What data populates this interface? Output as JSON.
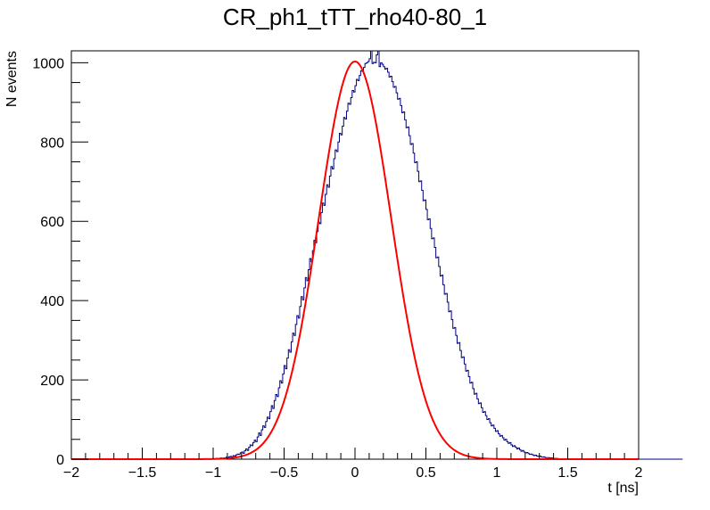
{
  "chart_data": {
    "type": "line",
    "title": "CR_ph1_tTT_rho40-80_1",
    "xlabel": "t [ns]",
    "ylabel": "N events",
    "xlim": [
      -2,
      2
    ],
    "ylim": [
      0,
      1030
    ],
    "x_ticks": [
      -2,
      -1.5,
      -1,
      -0.5,
      0,
      0.5,
      1,
      1.5,
      2
    ],
    "x_tick_labels": [
      "−2",
      "−1.5",
      "−1",
      "−0.5",
      "0",
      "0.5",
      "1",
      "1.5",
      "2"
    ],
    "y_ticks": [
      0,
      200,
      400,
      600,
      800,
      1000
    ],
    "y_tick_labels": [
      "0",
      "200",
      "400",
      "600",
      "800",
      "1000"
    ],
    "grid": false,
    "legend": "none",
    "series": [
      {
        "kind": "histogram",
        "color": "#000080",
        "bin_edges_range": [
          -2,
          2
        ],
        "bin_width": 0.01,
        "values": [
          0,
          0,
          0,
          0,
          0,
          0,
          0,
          0,
          0,
          0,
          0,
          0,
          0,
          0,
          0,
          0,
          0,
          0,
          0,
          0,
          0,
          0,
          0,
          0,
          0,
          0,
          0,
          0,
          0,
          0,
          0,
          0,
          0,
          0,
          0,
          0,
          0,
          0,
          0,
          0,
          0,
          0,
          0,
          0,
          0,
          0,
          0,
          0,
          0,
          0,
          0,
          0,
          0,
          0,
          0,
          0,
          0,
          0,
          0,
          0,
          0,
          0,
          0,
          0,
          0,
          0,
          0,
          0,
          0,
          0,
          0,
          0,
          0,
          0,
          0,
          0,
          0,
          0,
          0,
          0,
          0,
          0,
          0,
          0,
          0,
          0,
          0,
          0,
          0,
          0,
          0,
          0,
          0,
          0,
          0,
          0,
          0,
          0,
          0,
          0,
          1,
          1,
          2,
          2,
          1,
          3,
          2,
          3,
          3,
          5,
          4,
          6,
          7,
          6,
          9,
          8,
          11,
          13,
          12,
          16,
          18,
          15,
          21,
          26,
          22,
          30,
          36,
          34,
          42,
          48,
          44,
          56,
          66,
          60,
          74,
          84,
          80,
          95,
          106,
          102,
          120,
          135,
          128,
          148,
          163,
          158,
          180,
          198,
          192,
          215,
          236,
          228,
          255,
          276,
          270,
          296,
          318,
          312,
          340,
          362,
          356,
          385,
          410,
          402,
          432,
          458,
          450,
          478,
          506,
          498,
          526,
          552,
          546,
          574,
          598,
          594,
          622,
          646,
          640,
          668,
          692,
          686,
          714,
          738,
          732,
          758,
          780,
          776,
          800,
          822,
          818,
          840,
          862,
          858,
          878,
          898,
          895,
          912,
          930,
          926,
          942,
          958,
          955,
          968,
          980,
          978,
          988,
          998,
          1000,
          1003,
          1010,
          1042,
          998,
          1001,
          1000,
          1020,
          1036,
          990,
          1000,
          996,
          990,
          984,
          986,
          976,
          964,
          966,
          952,
          938,
          940,
          924,
          908,
          910,
          892,
          874,
          876,
          856,
          836,
          838,
          816,
          794,
          796,
          772,
          748,
          750,
          726,
          700,
          702,
          678,
          652,
          654,
          630,
          604,
          606,
          582,
          556,
          558,
          534,
          508,
          510,
          486,
          462,
          464,
          440,
          416,
          418,
          396,
          372,
          374,
          352,
          330,
          332,
          312,
          292,
          294,
          274,
          256,
          258,
          240,
          222,
          224,
          208,
          192,
          194,
          178,
          164,
          166,
          152,
          140,
          142,
          130,
          118,
          120,
          110,
          100,
          102,
          92,
          84,
          86,
          78,
          70,
          72,
          64,
          58,
          60,
          54,
          48,
          50,
          44,
          40,
          42,
          36,
          32,
          34,
          30,
          26,
          28,
          24,
          20,
          22,
          18,
          16,
          17,
          14,
          12,
          13,
          11,
          9,
          10,
          8,
          7,
          8,
          6,
          5,
          6,
          4,
          4,
          4,
          3,
          3,
          3,
          2,
          2,
          2,
          1,
          1,
          1,
          0,
          0,
          0,
          0,
          0,
          0,
          0,
          0,
          0,
          0,
          0,
          0,
          0,
          0,
          0,
          0,
          0,
          0,
          0,
          0,
          0,
          0,
          0,
          0,
          0,
          0,
          0,
          0,
          0,
          0,
          0,
          0,
          0,
          0,
          0,
          0,
          0,
          0,
          0,
          0,
          0,
          0,
          0,
          0,
          0,
          0,
          0,
          0,
          0,
          0,
          0,
          0,
          0,
          0,
          0,
          0,
          0,
          0,
          0,
          0,
          0,
          0,
          0,
          0,
          0,
          0,
          0,
          0,
          0,
          0,
          0,
          0,
          0,
          0,
          0,
          0,
          0,
          0,
          0,
          0,
          0,
          0,
          0,
          0,
          0
        ]
      },
      {
        "kind": "gaussian-fit",
        "color": "#ff0000",
        "amplitude": 1003,
        "mean": 0.0,
        "sigma": 0.255
      }
    ]
  }
}
